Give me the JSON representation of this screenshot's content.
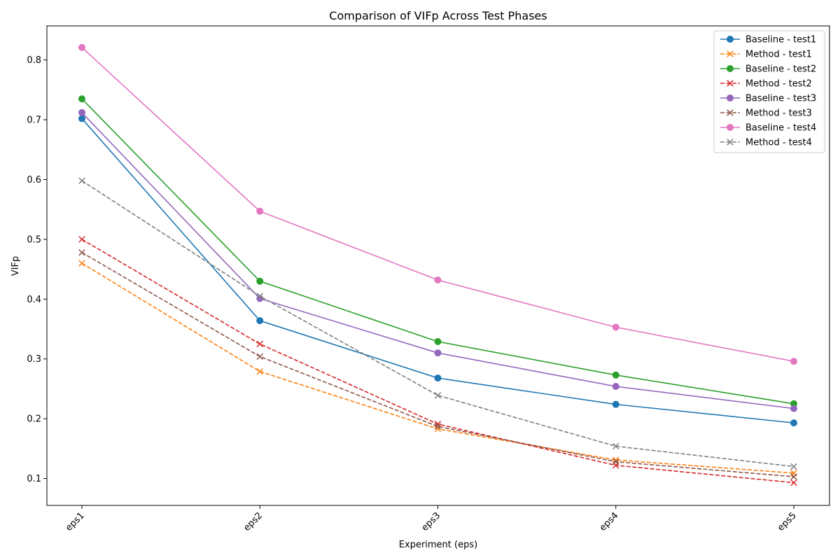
{
  "chart_data": {
    "type": "line",
    "title": "Comparison of VIFp Across Test Phases",
    "xlabel": "Experiment (eps)",
    "ylabel": "VIFp",
    "categories": [
      "eps1",
      "eps2",
      "eps3",
      "eps4",
      "eps5"
    ],
    "ylim": [
      0.055,
      0.857
    ],
    "yticks": [
      "0.1",
      "0.2",
      "0.3",
      "0.4",
      "0.5",
      "0.6",
      "0.7",
      "0.8"
    ],
    "grid": false,
    "legend_position": "top-right",
    "series": [
      {
        "name": "Baseline - test1",
        "color": "#1f77b4",
        "style": "solid",
        "marker": "circle",
        "values": [
          0.702,
          0.364,
          0.268,
          0.224,
          0.193
        ]
      },
      {
        "name": "Method - test1",
        "color": "#ff7f0e",
        "style": "dashed",
        "marker": "x",
        "values": [
          0.46,
          0.279,
          0.183,
          0.131,
          0.109
        ]
      },
      {
        "name": "Baseline - test2",
        "color": "#2ca02c",
        "style": "solid",
        "marker": "circle",
        "values": [
          0.735,
          0.43,
          0.329,
          0.273,
          0.225
        ]
      },
      {
        "name": "Method - test2",
        "color": "#d62728",
        "style": "dashed",
        "marker": "x",
        "values": [
          0.5,
          0.325,
          0.191,
          0.122,
          0.093
        ]
      },
      {
        "name": "Baseline - test3",
        "color": "#9467bd",
        "style": "solid",
        "marker": "circle",
        "values": [
          0.712,
          0.401,
          0.31,
          0.254,
          0.217
        ]
      },
      {
        "name": "Method - test3",
        "color": "#8c564b",
        "style": "dashed",
        "marker": "x",
        "values": [
          0.478,
          0.304,
          0.187,
          0.128,
          0.103
        ]
      },
      {
        "name": "Baseline - test4",
        "color": "#e377c2",
        "style": "solid",
        "marker": "circle",
        "values": [
          0.821,
          0.547,
          0.432,
          0.353,
          0.296
        ]
      },
      {
        "name": "Method - test4",
        "color": "#7f7f7f",
        "style": "dashed",
        "marker": "x",
        "values": [
          0.598,
          0.405,
          0.239,
          0.154,
          0.12
        ]
      }
    ]
  }
}
